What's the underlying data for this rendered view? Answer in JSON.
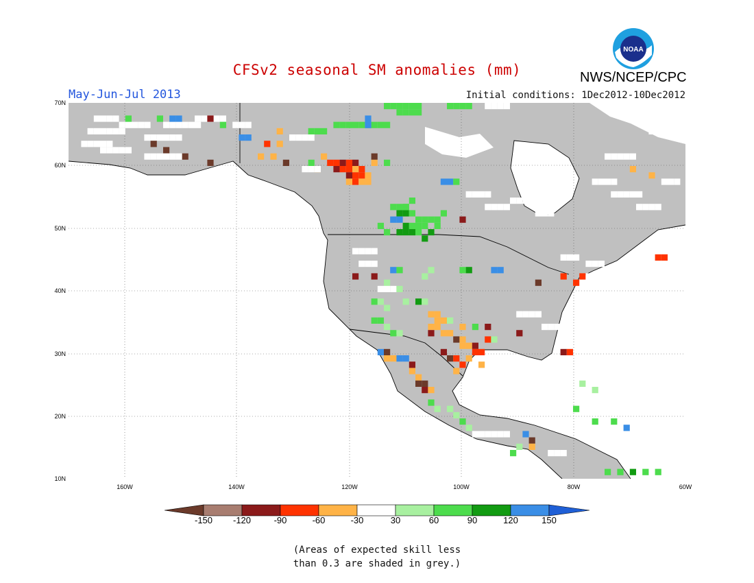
{
  "title": "CFSv2 seasonal SM anomalies (mm)",
  "organization": "NWS/NCEP/CPC",
  "logo_text": "NOAA",
  "season": "May-Jun-Jul 2013",
  "initial_conditions": "Initial conditions: 1Dec2012-10Dec2012",
  "latitude_ticks": [
    "70N",
    "60N",
    "50N",
    "40N",
    "30N",
    "20N",
    "10N"
  ],
  "longitude_ticks": [
    "160W",
    "140W",
    "120W",
    "100W",
    "80W",
    "60W"
  ],
  "colorbar": {
    "labels": [
      "-150",
      "-120",
      "-90",
      "-60",
      "-30",
      "30",
      "60",
      "90",
      "120",
      "150"
    ],
    "colors": [
      "#6b3a2a",
      "#a87d70",
      "#8b1a1a",
      "#ff3300",
      "#ffb347",
      "#ffffff",
      "#a8f0a0",
      "#4ddc4d",
      "#129b12",
      "#3a8ee6",
      "#1f5fd6"
    ]
  },
  "note": [
    "(Areas of expected skill less",
    "than 0.3 are shaded in grey.)"
  ],
  "map_colors": {
    "ocean": "#ffffff",
    "land_grey": "#c0c0c0",
    "boundary": "#000000"
  }
}
